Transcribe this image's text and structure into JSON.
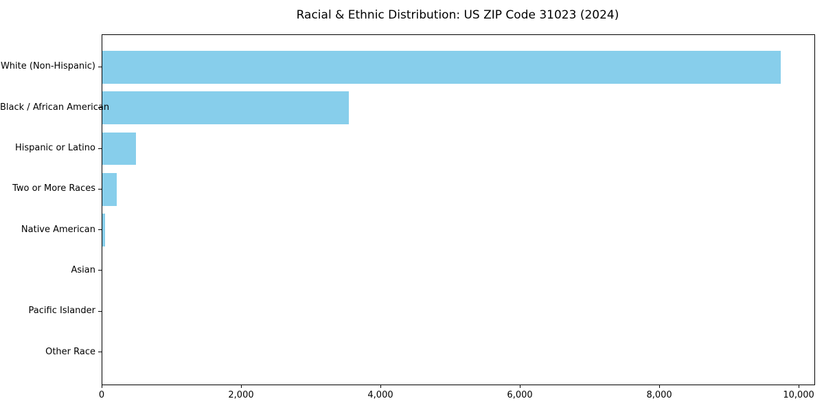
{
  "chart_data": {
    "type": "bar",
    "orientation": "horizontal",
    "title": "Racial & Ethnic Distribution: US ZIP Code 31023 (2024)",
    "categories": [
      "White (Non-Hispanic)",
      "Black / African American",
      "Hispanic or Latino",
      "Two or More Races",
      "Native American",
      "Asian",
      "Pacific Islander",
      "Other Race"
    ],
    "values": [
      9730,
      3540,
      480,
      210,
      40,
      0,
      0,
      0
    ],
    "bar_color": "#87CEEB",
    "xlabel": "",
    "ylabel": "",
    "xlim": [
      0,
      10216
    ],
    "x_ticks": {
      "values": [
        0,
        2000,
        4000,
        6000,
        8000,
        10000
      ],
      "labels": [
        "0",
        "2,000",
        "4,000",
        "6,000",
        "8,000",
        "10,000"
      ]
    },
    "grid": false,
    "legend": "none",
    "plot_border_color": "#000000",
    "background_color": "#ffffff"
  }
}
